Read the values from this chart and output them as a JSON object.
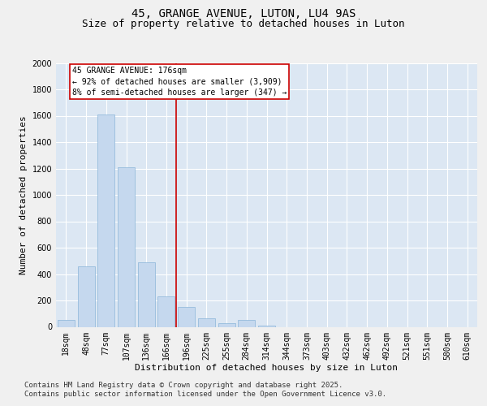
{
  "title1": "45, GRANGE AVENUE, LUTON, LU4 9AS",
  "title2": "Size of property relative to detached houses in Luton",
  "xlabel": "Distribution of detached houses by size in Luton",
  "ylabel": "Number of detached properties",
  "categories": [
    "18sqm",
    "48sqm",
    "77sqm",
    "107sqm",
    "136sqm",
    "166sqm",
    "196sqm",
    "225sqm",
    "255sqm",
    "284sqm",
    "314sqm",
    "344sqm",
    "373sqm",
    "403sqm",
    "432sqm",
    "462sqm",
    "492sqm",
    "521sqm",
    "551sqm",
    "580sqm",
    "610sqm"
  ],
  "values": [
    50,
    460,
    1610,
    1210,
    490,
    230,
    150,
    65,
    30,
    55,
    10,
    0,
    0,
    0,
    0,
    0,
    0,
    0,
    0,
    0,
    0
  ],
  "bar_color": "#c5d8ee",
  "bar_edge_color": "#8ab4d8",
  "background_color": "#dce7f3",
  "vline_x": 5.5,
  "vline_color": "#cc0000",
  "annotation_text": "45 GRANGE AVENUE: 176sqm\n← 92% of detached houses are smaller (3,909)\n8% of semi-detached houses are larger (347) →",
  "annotation_box_color": "#ffffff",
  "annotation_box_edge_color": "#cc0000",
  "ylim": [
    0,
    2000
  ],
  "yticks": [
    0,
    200,
    400,
    600,
    800,
    1000,
    1200,
    1400,
    1600,
    1800,
    2000
  ],
  "footer1": "Contains HM Land Registry data © Crown copyright and database right 2025.",
  "footer2": "Contains public sector information licensed under the Open Government Licence v3.0.",
  "title_fontsize": 10,
  "subtitle_fontsize": 9,
  "label_fontsize": 8,
  "tick_fontsize": 7,
  "annot_fontsize": 7,
  "footer_fontsize": 6.5,
  "fig_bg": "#f0f0f0"
}
